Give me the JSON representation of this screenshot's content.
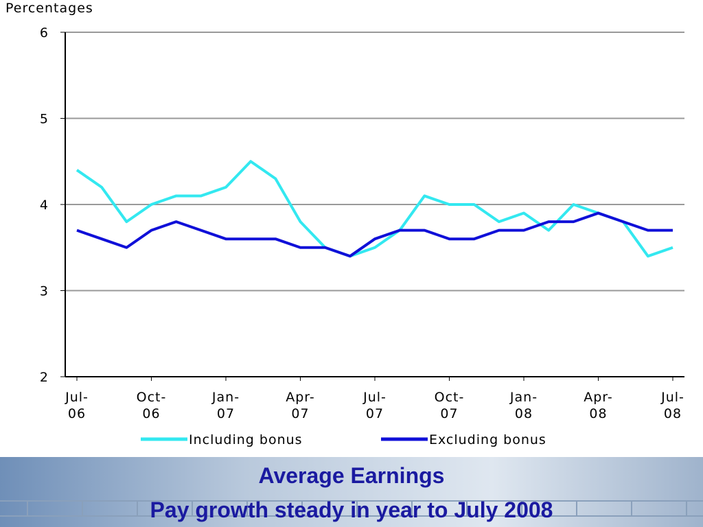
{
  "chart_data": {
    "type": "line",
    "title": "Average Earnings",
    "subtitle": "Pay growth steady in year to July 2008",
    "y_label": "Percentages",
    "categories": [
      "Jul-\n06",
      null,
      null,
      "Oct-\n06",
      null,
      null,
      "Jan-\n07",
      null,
      null,
      "Apr-\n07",
      null,
      null,
      "Jul-\n07",
      null,
      null,
      "Oct-\n07",
      null,
      null,
      "Jan-\n08",
      null,
      null,
      "Apr-\n08",
      null,
      null,
      "Jul-\n08"
    ],
    "series": [
      {
        "name": "Including bonus",
        "color": "#33e8f0",
        "values": [
          4.4,
          4.2,
          3.8,
          4.0,
          4.1,
          4.1,
          4.2,
          4.5,
          4.3,
          3.8,
          3.5,
          3.4,
          3.5,
          3.7,
          4.1,
          4.0,
          4.0,
          3.8,
          3.9,
          3.7,
          4.0,
          3.9,
          3.8,
          3.4,
          3.5
        ]
      },
      {
        "name": "Excluding bonus",
        "color": "#1010d8",
        "values": [
          3.7,
          3.6,
          3.5,
          3.7,
          3.8,
          3.7,
          3.6,
          3.6,
          3.6,
          3.5,
          3.5,
          3.4,
          3.6,
          3.7,
          3.7,
          3.6,
          3.6,
          3.7,
          3.7,
          3.8,
          3.8,
          3.9,
          3.8,
          3.7,
          3.7
        ]
      }
    ],
    "ylim": [
      2,
      6
    ],
    "yticks": [
      2,
      3,
      4,
      5,
      6
    ],
    "grid": true,
    "legend": "bottom"
  }
}
